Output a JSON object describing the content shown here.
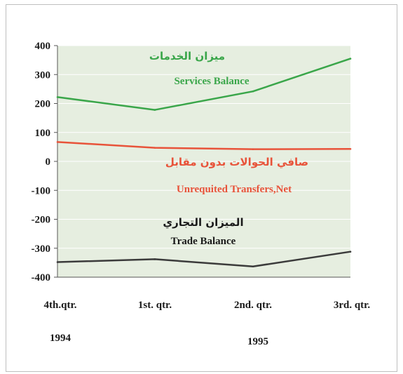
{
  "chart_data": {
    "type": "line",
    "categories": [
      "4th.qtr.",
      "1st. qtr.",
      "2nd. qtr.",
      "3rd. qtr."
    ],
    "years": [
      "1994",
      "1995"
    ],
    "ylim": [
      -400,
      400
    ],
    "yticks": [
      "400",
      "300",
      "200",
      "100",
      "0",
      "-100",
      "-200",
      "-300",
      "-400"
    ],
    "grid": true,
    "plot_background": "#e6eee0",
    "series": [
      {
        "name": "Services Balance",
        "name_ar": "ميزان الخدمات",
        "color": "#3aa64a",
        "values": [
          222,
          178,
          242,
          355
        ]
      },
      {
        "name": "Unrequited Transfers,Net",
        "name_ar": "صافي الحوالات بدون مقابل",
        "color": "#e8533a",
        "values": [
          67,
          47,
          42,
          43
        ]
      },
      {
        "name": "Trade Balance",
        "name_ar": "الميزان التجاري",
        "color": "#3b3b3b",
        "values": [
          -348,
          -338,
          -363,
          -312
        ]
      }
    ]
  }
}
